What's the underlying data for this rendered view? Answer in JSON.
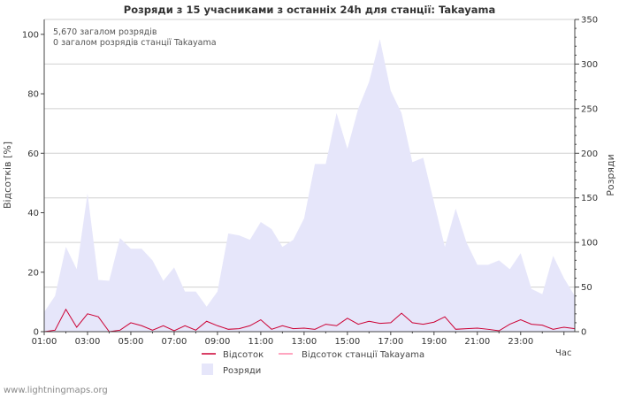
{
  "chart_data": {
    "type": "area",
    "title": "Розряди з 15 учасниками з останніх 24h для станції: Takayama",
    "ylabel_left": "Відсотків  [%]",
    "ylabel_right": "Розряди",
    "xlabel": "Час",
    "left_ylim": [
      0,
      105
    ],
    "right_ylim": [
      0,
      350
    ],
    "left_ticks": [
      0,
      20,
      40,
      60,
      80,
      100
    ],
    "right_ticks": [
      0,
      50,
      100,
      150,
      200,
      250,
      300,
      350
    ],
    "xlim": [
      1,
      25.5
    ],
    "x_tick_values": [
      1,
      3,
      5,
      7,
      9,
      11,
      13,
      15,
      17,
      19,
      21,
      23
    ],
    "x_tick_labels": [
      "01:00",
      "03:00",
      "05:00",
      "07:00",
      "09:00",
      "11:00",
      "13:00",
      "15:00",
      "17:00",
      "19:00",
      "21:00",
      "23:00"
    ],
    "annotations": [
      "5,670 загалом розрядів",
      "0 загалом розрядів станції Takayama"
    ],
    "legend": [
      {
        "label": "Відсоток",
        "color": "#cc0033",
        "kind": "line"
      },
      {
        "label": "Відсоток станції Takayama",
        "color": "#ff88aa",
        "kind": "line"
      },
      {
        "label": "Розряди",
        "color": "#e6e6fa",
        "kind": "area"
      }
    ],
    "series": [
      {
        "name": "Розряди",
        "axis": "right",
        "x": [
          1,
          1.5,
          2,
          2.5,
          3,
          3.5,
          4,
          4.5,
          5,
          5.5,
          6,
          6.5,
          7,
          7.5,
          8,
          8.5,
          9,
          9.5,
          10,
          10.5,
          11,
          11.5,
          12,
          12.5,
          13,
          13.5,
          14,
          14.5,
          15,
          15.5,
          16,
          16.5,
          17,
          17.5,
          18,
          18.5,
          19,
          19.5,
          20,
          20.5,
          21,
          21.5,
          22,
          22.5,
          23,
          23.5,
          24,
          24.5,
          25,
          25.5
        ],
        "values": [
          22,
          40,
          95,
          70,
          155,
          58,
          57,
          105,
          93,
          93,
          80,
          57,
          72,
          45,
          45,
          28,
          45,
          110,
          108,
          103,
          123,
          115,
          95,
          103,
          127,
          188,
          188,
          245,
          205,
          250,
          280,
          328,
          270,
          245,
          190,
          195,
          145,
          95,
          138,
          100,
          75,
          75,
          80,
          70,
          88,
          48,
          42,
          85,
          60,
          40
        ]
      },
      {
        "name": "Відсоток",
        "axis": "left",
        "x": [
          1,
          1.5,
          2,
          2.5,
          3,
          3.5,
          4,
          4.5,
          5,
          5.5,
          6,
          6.5,
          7,
          7.5,
          8,
          8.5,
          9,
          9.5,
          10,
          10.5,
          11,
          11.5,
          12,
          12.5,
          13,
          13.5,
          14,
          14.5,
          15,
          15.5,
          16,
          16.5,
          17,
          17.5,
          18,
          18.5,
          19,
          19.5,
          20,
          20.5,
          21,
          21.5,
          22,
          22.5,
          23,
          23.5,
          24,
          24.5,
          25,
          25.5
        ],
        "values": [
          0,
          0.5,
          7.5,
          1.5,
          6,
          5,
          0,
          0.5,
          3,
          2,
          0.5,
          2,
          0.3,
          2,
          0.5,
          3.5,
          2,
          0.8,
          1,
          2,
          4,
          0.8,
          2,
          1,
          1.2,
          0.8,
          2.5,
          2,
          4.5,
          2.5,
          3.5,
          2.8,
          3,
          6.2,
          3,
          2.5,
          3.2,
          5,
          0.8,
          1,
          1.2,
          0.8,
          0.3,
          2.5,
          4,
          2.5,
          2.2,
          0.8,
          1.5,
          1
        ]
      },
      {
        "name": "Відсоток станції Takayama",
        "axis": "left",
        "x": [
          1,
          25.5
        ],
        "values": [
          0,
          0
        ]
      }
    ]
  },
  "footer": "www.lightningmaps.org"
}
